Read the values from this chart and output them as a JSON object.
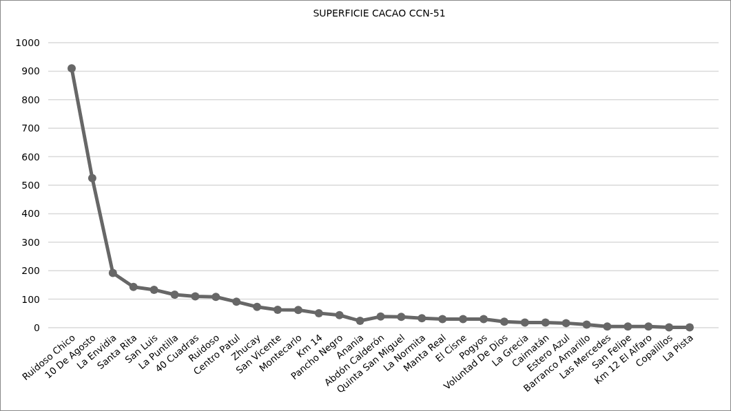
{
  "chart_data": {
    "type": "line",
    "title": "SUPERFICIE CACAO CCN-51",
    "categories": [
      "Ruidoso Chico",
      "10 De Agosto",
      "La Envidia",
      "Santa Rita",
      "San Luis",
      "La Puntilla",
      "40 Cuadras",
      "Ruidoso",
      "Centro Patul",
      "Zhucay",
      "San Vicente",
      "Montecarlo",
      "Km 14",
      "Pancho Negro",
      "Anania",
      "Abdón Calderón",
      "Quinta San Miguel",
      "La Normita",
      "Manta Real",
      "El Cisne",
      "Pogyos",
      "Voluntad De Dios",
      "La Grecia",
      "Caimatán",
      "Estero Azul",
      "Barranco Amarillo",
      "Las Mercedes",
      "San Felipe",
      "Km 12 El Alfaro",
      "Copalillos",
      "La Pista"
    ],
    "series": [
      {
        "color": "#676767",
        "values": [
          910,
          525,
          192,
          143,
          133,
          116,
          110,
          108,
          91,
          73,
          63,
          62,
          51,
          44,
          24,
          39,
          38,
          33,
          30,
          30,
          30,
          21,
          18,
          18,
          16,
          11,
          4,
          4,
          4,
          1,
          1
        ]
      }
    ],
    "ylim": [
      0,
      1000
    ],
    "yticks": [
      0,
      100,
      200,
      300,
      400,
      500,
      600,
      700,
      800,
      900,
      1000
    ],
    "grid": "y",
    "marker": "circle",
    "line_style": "solid"
  }
}
